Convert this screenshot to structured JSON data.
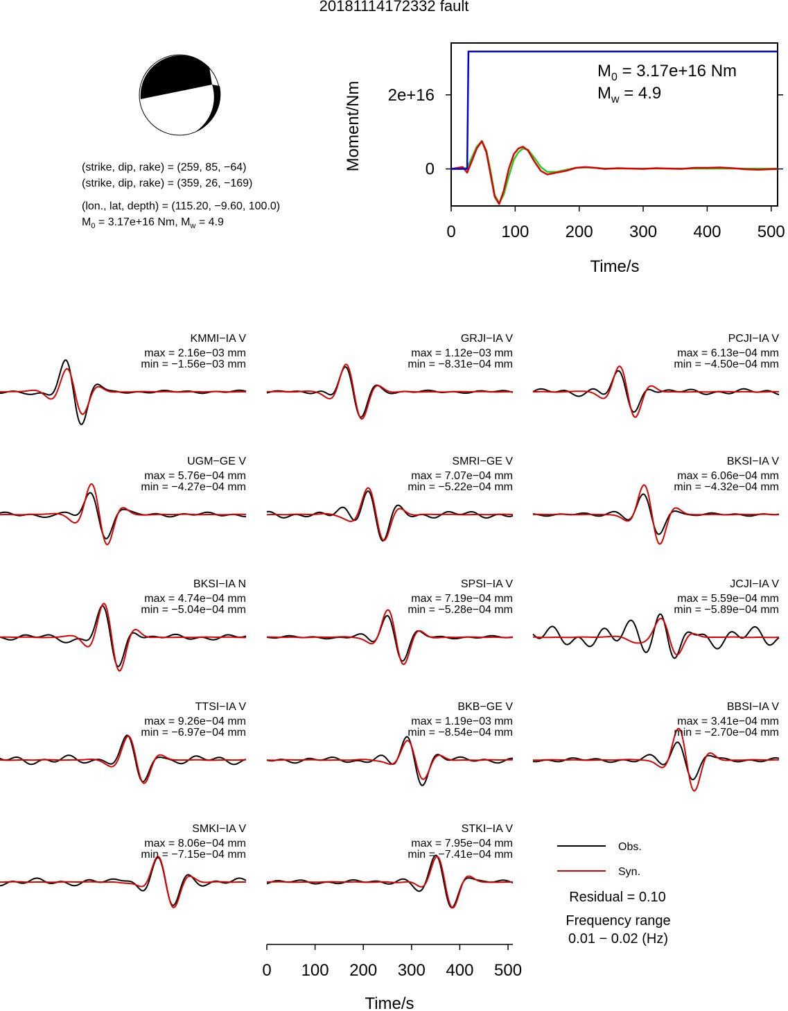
{
  "title": "20181114172332 fault",
  "focal_mechanism": {
    "plane1": "(strike, dip, rake) = (259, 85, −64)",
    "plane2": "(strike, dip, rake) = (359, 26, −169)",
    "location": "(lon., lat, depth) = (115.20, −9.60, 100.0)",
    "m0_prefix": "M",
    "m0_sub": "0",
    "m0_rest": " = 3.17e+16 Nm, M",
    "mw_sub": "w",
    "mw_rest": " = 4.9"
  },
  "colors": {
    "observed": "#000000",
    "synthetic": "#dd0000",
    "cumulative": "#0000dd",
    "rate": "#22cc22",
    "axis": "#000000"
  },
  "legend": {
    "obs": "Obs.",
    "syn": "Syn.",
    "residual": "Residual = 0.10",
    "freq_title": "Frequency range",
    "freq_value": "0.01 − 0.02 (Hz)"
  },
  "chart_data": [
    {
      "type": "line",
      "title": "",
      "xlabel": "Time/s",
      "ylabel": "Moment/Nm",
      "xlim": [
        0,
        510
      ],
      "ylim": [
        -1e+16,
        3.4e+16
      ],
      "xticks": [
        0,
        100,
        200,
        300,
        400,
        500
      ],
      "ytick_labels": [
        {
          "value": 2e+16,
          "label": "2e+16"
        },
        {
          "value": 0,
          "label": "0"
        }
      ],
      "annotation": {
        "m0_prefix": "M",
        "m0_sub": "0",
        "m0_rest": " = 3.17e+16 Nm",
        "mw_prefix": "M",
        "mw_sub": "w",
        "mw_rest": " = 4.9"
      },
      "series": [
        {
          "color": "#0000dd",
          "x": [
            0,
            25,
            27,
            30,
            510
          ],
          "y": [
            0,
            0,
            3.17e+16,
            3.17e+16,
            3.17e+16
          ]
        },
        {
          "color": "#dd0000",
          "x": [
            0,
            18,
            25,
            32,
            40,
            48,
            55,
            62,
            68,
            75,
            82,
            90,
            98,
            105,
            112,
            120,
            130,
            140,
            150,
            165,
            180,
            195,
            210,
            225,
            240,
            260,
            280,
            300,
            320,
            340,
            360,
            380,
            400,
            420,
            440,
            460,
            480,
            510
          ],
          "y": [
            0,
            500000000000000.0,
            -1000000000000000.0,
            2000000000000000.0,
            5500000000000000.0,
            7500000000000000.0,
            4500000000000000.0,
            -2000000000000000.0,
            -7500000000000000.0,
            -9500000000000000.0,
            -6000000000000000.0,
            0,
            4000000000000000.0,
            5500000000000000.0,
            6000000000000000.0,
            5000000000000000.0,
            2000000000000000.0,
            -500000000000000.0,
            -1500000000000000.0,
            -1000000000000000.0,
            -500000000000000.0,
            300000000000000.0,
            500000000000000.0,
            300000000000000.0,
            0,
            200000000000000.0,
            100000000000000.0,
            0,
            200000000000000.0,
            100000000000000.0,
            0,
            300000000000000.0,
            300000000000000.0,
            400000000000000.0,
            200000000000000.0,
            -100000000000000.0,
            -200000000000000.0,
            0
          ]
        },
        {
          "color": "#22cc22",
          "x": [
            0,
            18,
            25,
            32,
            40,
            48,
            55,
            62,
            68,
            75,
            82,
            90,
            98,
            105,
            112,
            120,
            130,
            140,
            150,
            165,
            180,
            195,
            210,
            225,
            240,
            260,
            280,
            300,
            320,
            340,
            360,
            380,
            400,
            420,
            440,
            460,
            480,
            510
          ],
          "y": [
            0,
            200000000000000.0,
            200000000000000.0,
            3000000000000000.0,
            6000000000000000.0,
            7500000000000000.0,
            5000000000000000.0,
            -1000000000000000.0,
            -7000000000000000.0,
            -9200000000000000.0,
            -7000000000000000.0,
            -2000000000000000.0,
            2500000000000000.0,
            4500000000000000.0,
            5500000000000000.0,
            5200000000000000.0,
            3000000000000000.0,
            500000000000000.0,
            -800000000000000.0,
            -800000000000000.0,
            -200000000000000.0,
            300000000000000.0,
            400000000000000.0,
            300000000000000.0,
            100000000000000.0,
            100000000000000.0,
            100000000000000.0,
            100000000000000.0,
            100000000000000.0,
            100000000000000.0,
            100000000000000.0,
            100000000000000.0,
            100000000000000.0,
            100000000000000.0,
            100000000000000.0,
            100000000000000.0,
            100000000000000.0,
            100000000000000.0
          ]
        }
      ]
    },
    {
      "type": "line",
      "title": "",
      "xlabel": "Time/s",
      "xlim": [
        0,
        510
      ],
      "xticks": [
        0,
        100,
        200,
        300,
        400,
        500
      ],
      "legend_position": "bottom-right",
      "stations": [
        {
          "label": "KMMI−IA V",
          "max": "max = 2.16e−03 mm",
          "min": "min = −1.56e−03 mm",
          "p": 0.3,
          "amp": 1.0,
          "ar": 0.7,
          "np": 0.15,
          "no": 0.02,
          "ns": 1
        },
        {
          "label": "GRJI−IA V",
          "max": "max = 1.12e−03 mm",
          "min": "min = −8.31e−04 mm",
          "p": 0.35,
          "amp": 0.8,
          "ar": 1.05,
          "np": 0.1,
          "no": 0.02,
          "ns": 2
        },
        {
          "label": "PCJI−IA V",
          "max": "max = 6.13e−04 mm",
          "min": "min = −4.50e−04 mm",
          "p": 0.38,
          "amp": 0.6,
          "ar": 1.3,
          "np": 0.1,
          "no": 0.04,
          "ns": 3
        },
        {
          "label": "UGM−GE V",
          "max": "max = 5.76e−04 mm",
          "min": "min = −4.27e−04 mm",
          "p": 0.4,
          "amp": 0.75,
          "ar": 1.25,
          "np": 0.12,
          "no": 0.03,
          "ns": 4
        },
        {
          "label": "SMRI−GE V",
          "max": "max = 7.07e−04 mm",
          "min": "min = −5.22e−04 mm",
          "p": 0.44,
          "amp": 0.8,
          "ar": 1.0,
          "np": 0.2,
          "no": 0.05,
          "ns": 5
        },
        {
          "label": "BKSI−IA V",
          "max": "max = 6.06e−04 mm",
          "min": "min = −4.32e−04 mm",
          "p": 0.48,
          "amp": 0.65,
          "ar": 1.4,
          "np": 0.1,
          "no": 0.02,
          "ns": 6
        },
        {
          "label": "BKSI−IA N",
          "max": "max = 4.74e−04 mm",
          "min": "min = −5.04e−04 mm",
          "p": 0.45,
          "amp": 0.9,
          "ar": 1.15,
          "np": 0.15,
          "no": 0.04,
          "ns": 7
        },
        {
          "label": "SPSI−IA V",
          "max": "max = 7.19e−04 mm",
          "min": "min = −5.28e−04 mm",
          "p": 0.52,
          "amp": 0.7,
          "ar": 1.2,
          "np": 0.08,
          "no": 0.02,
          "ns": 8
        },
        {
          "label": "JCJI−IA V",
          "max": "max = 5.59e−04 mm",
          "min": "min = −5.89e−04 mm",
          "p": 0.55,
          "amp": 0.9,
          "ar": 0.6,
          "np": 0.4,
          "no": 0.15,
          "ns": 9
        },
        {
          "label": "TTSI−IA V",
          "max": "max = 9.26e−04 mm",
          "min": "min = −6.97e−04 mm",
          "p": 0.55,
          "amp": 0.8,
          "ar": 0.9,
          "np": 0.15,
          "no": 0.06,
          "ns": 10
        },
        {
          "label": "BKB−GE V",
          "max": "max = 1.19e−03 mm",
          "min": "min = −8.54e−04 mm",
          "p": 0.6,
          "amp": 0.7,
          "ar": 0.85,
          "np": 0.1,
          "no": 0.04,
          "ns": 11
        },
        {
          "label": "BBSI−IA V",
          "max": "max = 3.41e−04 mm",
          "min": "min = −2.70e−04 mm",
          "p": 0.62,
          "amp": 0.6,
          "ar": 1.6,
          "np": 0.1,
          "no": 0.03,
          "ns": 12
        },
        {
          "label": "SMKI−IA V",
          "max": "max = 8.06e−04 mm",
          "min": "min = −7.15e−04 mm",
          "p": 0.67,
          "amp": 0.75,
          "ar": 1.05,
          "np": 0.12,
          "no": 0.05,
          "ns": 13
        },
        {
          "label": "STKI−IA V",
          "max": "max = 7.95e−04 mm",
          "min": "min = −7.41e−04 mm",
          "p": 0.72,
          "amp": 0.8,
          "ar": 1.0,
          "np": 0.1,
          "no": 0.03,
          "ns": 14
        }
      ]
    }
  ]
}
